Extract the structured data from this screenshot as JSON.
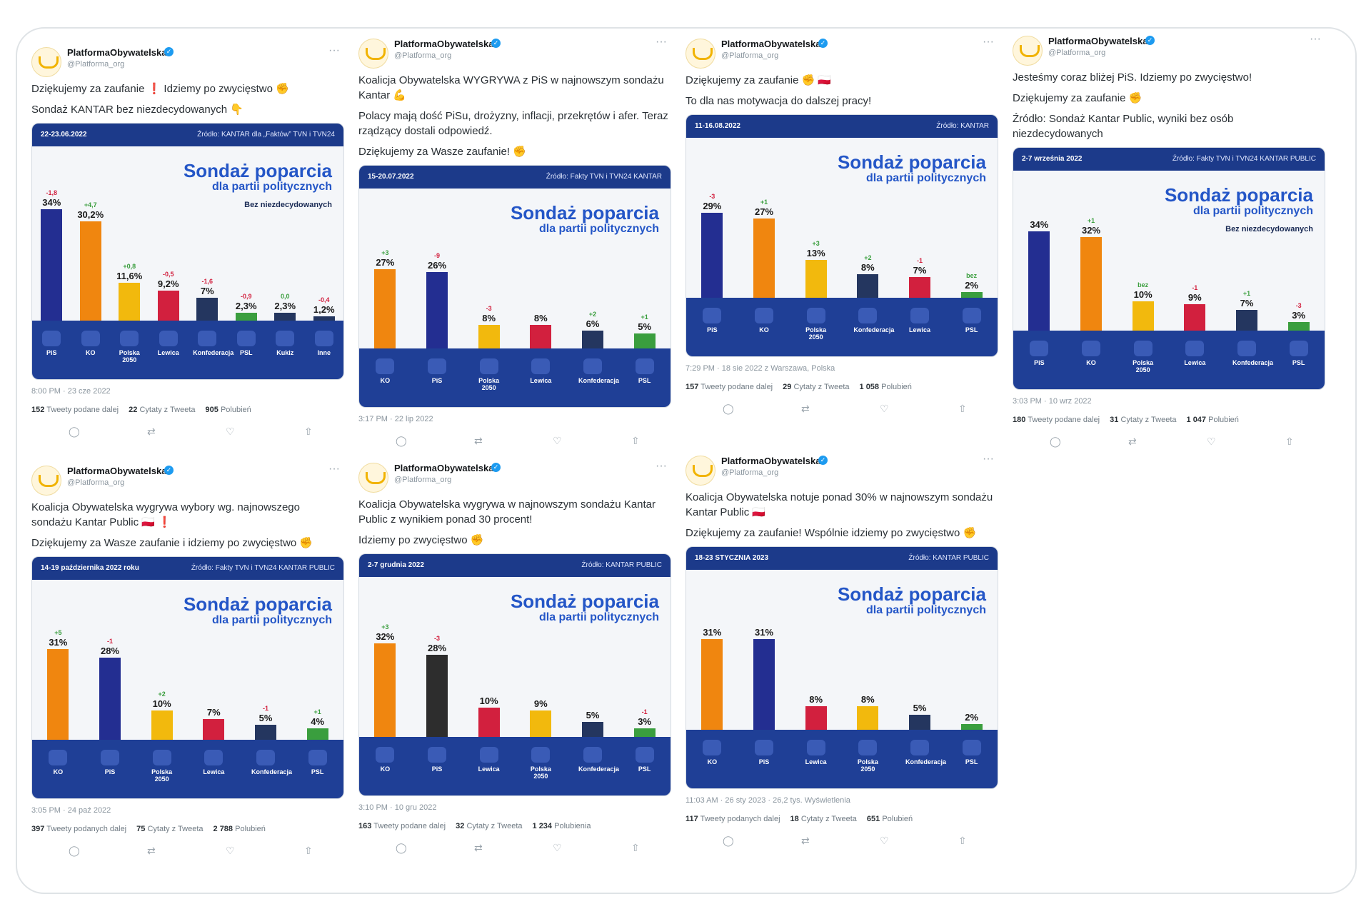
{
  "account": {
    "name": "PlatformaObywatelska",
    "handle": "@Platforma_org",
    "verified_glyph": "✓",
    "more_glyph": "···"
  },
  "chart_title": "Sondaż poparcia",
  "chart_subtitle": "dla partii politycznych",
  "colors": {
    "orange": "#f0860f",
    "navy": "#232e91",
    "yellow": "#f2b90d",
    "red": "#d2203e",
    "darkblue": "#24365f",
    "green": "#3a9e3e",
    "black": "#2d2d2d"
  },
  "tweets": [
    {
      "paragraphs": [
        "Dziękujemy za zaufanie ❗ Idziemy po zwycięstwo ✊",
        "Sondaż KANTAR bez niezdecydowanych 👇"
      ],
      "card": {
        "date": "22-23.06.2022",
        "source": "Źródło: KANTAR dla „Faktów” TVN i TVN24",
        "note": "Bez niezdecydowanych"
      },
      "meta": "8:00 PM · 23 cze 2022",
      "stats": {
        "retweets": "152",
        "retweets_label": "Tweety podane dalej",
        "quotes": "22",
        "quotes_label": "Cytaty z Tweeta",
        "likes": "905",
        "likes_label": "Polubień"
      },
      "chart_data": {
        "type": "bar",
        "ylim": [
          0,
          40
        ],
        "bars": [
          {
            "value": 34,
            "label": "34%",
            "change": "-1,8",
            "color": "navy",
            "party": "PiS"
          },
          {
            "value": 30.2,
            "label": "30,2%",
            "change": "+4,7",
            "color": "orange",
            "party": "KO"
          },
          {
            "value": 11.6,
            "label": "11,6%",
            "change": "+0,8",
            "color": "yellow",
            "party": "Polska 2050"
          },
          {
            "value": 9.2,
            "label": "9,2%",
            "change": "-0,5",
            "color": "red",
            "party": "Lewica"
          },
          {
            "value": 7,
            "label": "7%",
            "change": "-1,6",
            "color": "darkblue",
            "party": "Konfederacja"
          },
          {
            "value": 2.3,
            "label": "2,3%",
            "change": "-0,9",
            "color": "green",
            "party": "PSL"
          },
          {
            "value": 2.3,
            "label": "2,3%",
            "change": "0,0",
            "color": "darkblue",
            "party": "Kukiz"
          },
          {
            "value": 1.2,
            "label": "1,2%",
            "change": "-0,4",
            "color": "darkblue",
            "party": "Inne"
          }
        ]
      }
    },
    {
      "paragraphs": [
        "Koalicja Obywatelska WYGRYWA z PiS w najnowszym sondażu Kantar 💪",
        "Polacy mają dość PiSu, drożyzny, inflacji, przekrętów i afer. Teraz rządzący dostali odpowiedź.",
        "Dziękujemy za Wasze zaufanie! ✊"
      ],
      "card": {
        "date": "15-20.07.2022",
        "source": "Źródło: Fakty TVN i TVN24 KANTAR",
        "note": ""
      },
      "meta": "3:17 PM · 22 lip 2022",
      "stats": null,
      "chart_data": {
        "type": "bar",
        "ylim": [
          0,
          40
        ],
        "bars": [
          {
            "value": 27,
            "label": "27%",
            "change": "+3",
            "color": "orange",
            "party": "KO"
          },
          {
            "value": 26,
            "label": "26%",
            "change": "-9",
            "color": "navy",
            "party": "PiS"
          },
          {
            "value": 8,
            "label": "8%",
            "change": "-3",
            "color": "yellow",
            "party": "Polska 2050"
          },
          {
            "value": 8,
            "label": "8%",
            "change": "",
            "color": "red",
            "party": "Lewica"
          },
          {
            "value": 6,
            "label": "6%",
            "change": "+2",
            "color": "darkblue",
            "party": "Konfederacja"
          },
          {
            "value": 5,
            "label": "5%",
            "change": "+1",
            "color": "green",
            "party": "PSL"
          }
        ]
      }
    },
    {
      "paragraphs": [
        "Dziękujemy za zaufanie ✊ 🇵🇱",
        "To dla nas motywacja do dalszej pracy!"
      ],
      "card": {
        "date": "11-16.08.2022",
        "source": "Źródło: KANTAR",
        "note": ""
      },
      "meta": "7:29 PM · 18 sie 2022 z Warszawa, Polska",
      "stats": {
        "retweets": "157",
        "retweets_label": "Tweety podane dalej",
        "quotes": "29",
        "quotes_label": "Cytaty z Tweeta",
        "likes": "1 058",
        "likes_label": "Polubień"
      },
      "chart_data": {
        "type": "bar",
        "ylim": [
          0,
          40
        ],
        "bars": [
          {
            "value": 29,
            "label": "29%",
            "change": "-3",
            "color": "navy",
            "party": "PiS"
          },
          {
            "value": 27,
            "label": "27%",
            "change": "+1",
            "color": "orange",
            "party": "KO"
          },
          {
            "value": 13,
            "label": "13%",
            "change": "+3",
            "color": "yellow",
            "party": "Polska 2050"
          },
          {
            "value": 8,
            "label": "8%",
            "change": "+2",
            "color": "darkblue",
            "party": "Konfederacja"
          },
          {
            "value": 7,
            "label": "7%",
            "change": "-1",
            "color": "red",
            "party": "Lewica"
          },
          {
            "value": 2,
            "label": "2%",
            "change": "bez",
            "color": "green",
            "party": "PSL"
          }
        ]
      }
    },
    {
      "paragraphs": [
        "Jesteśmy coraz bliżej PiS. Idziemy po zwycięstwo!",
        "Dziękujemy za zaufanie ✊",
        "Źródło: Sondaż Kantar Public, wyniki bez osób niezdecydowanych"
      ],
      "card": {
        "date": "2-7 września 2022",
        "source": "Źródło: Fakty TVN i TVN24 KANTAR PUBLIC",
        "note": "Bez niezdecydowanych"
      },
      "meta": "3:03 PM · 10 wrz 2022",
      "stats": {
        "retweets": "180",
        "retweets_label": "Tweety podane dalej",
        "quotes": "31",
        "quotes_label": "Cytaty z Tweeta",
        "likes": "1 047",
        "likes_label": "Polubień"
      },
      "chart_data": {
        "type": "bar",
        "ylim": [
          0,
          40
        ],
        "bars": [
          {
            "value": 34,
            "label": "34%",
            "change": "",
            "color": "navy",
            "party": "PiS"
          },
          {
            "value": 32,
            "label": "32%",
            "change": "+1",
            "color": "orange",
            "party": "KO"
          },
          {
            "value": 10,
            "label": "10%",
            "change": "bez",
            "color": "yellow",
            "party": "Polska 2050"
          },
          {
            "value": 9,
            "label": "9%",
            "change": "-1",
            "color": "red",
            "party": "Lewica"
          },
          {
            "value": 7,
            "label": "7%",
            "change": "+1",
            "color": "darkblue",
            "party": "Konfederacja"
          },
          {
            "value": 3,
            "label": "3%",
            "change": "-3",
            "color": "green",
            "party": "PSL"
          }
        ]
      }
    },
    {
      "paragraphs": [
        "Koalicja Obywatelska wygrywa wybory wg. najnowszego sondażu Kantar Public 🇵🇱 ❗",
        "Dziękujemy za Wasze zaufanie i idziemy po zwycięstwo ✊"
      ],
      "card": {
        "date": "14-19 października 2022 roku",
        "source": "Źródło: Fakty TVN i TVN24 KANTAR PUBLIC",
        "note": ""
      },
      "meta": "3:05 PM · 24 paź 2022",
      "stats": {
        "retweets": "397",
        "retweets_label": "Tweety podanych dalej",
        "quotes": "75",
        "quotes_label": "Cytaty z Tweeta",
        "likes": "2 788",
        "likes_label": "Polubień"
      },
      "chart_data": {
        "type": "bar",
        "ylim": [
          0,
          40
        ],
        "bars": [
          {
            "value": 31,
            "label": "31%",
            "change": "+5",
            "color": "orange",
            "party": "KO"
          },
          {
            "value": 28,
            "label": "28%",
            "change": "-1",
            "color": "navy",
            "party": "PiS"
          },
          {
            "value": 10,
            "label": "10%",
            "change": "+2",
            "color": "yellow",
            "party": "Polska 2050"
          },
          {
            "value": 7,
            "label": "7%",
            "change": "",
            "color": "red",
            "party": "Lewica"
          },
          {
            "value": 5,
            "label": "5%",
            "change": "-1",
            "color": "darkblue",
            "party": "Konfederacja"
          },
          {
            "value": 4,
            "label": "4%",
            "change": "+1",
            "color": "green",
            "party": "PSL"
          }
        ]
      }
    },
    {
      "paragraphs": [
        "Koalicja Obywatelska wygrywa w najnowszym sondażu Kantar Public z wynikiem ponad 30 procent!",
        "Idziemy po zwycięstwo ✊"
      ],
      "card": {
        "date": "2-7 grudnia 2022",
        "source": "Źródło: KANTAR PUBLIC",
        "note": ""
      },
      "meta": "3:10 PM · 10 gru 2022",
      "stats": {
        "retweets": "163",
        "retweets_label": "Tweety podane dalej",
        "quotes": "32",
        "quotes_label": "Cytaty z Tweeta",
        "likes": "1 234",
        "likes_label": "Polubienia"
      },
      "chart_data": {
        "type": "bar",
        "ylim": [
          0,
          40
        ],
        "bars": [
          {
            "value": 32,
            "label": "32%",
            "change": "+3",
            "color": "orange",
            "party": "KO"
          },
          {
            "value": 28,
            "label": "28%",
            "change": "-3",
            "color": "black",
            "party": "PiS"
          },
          {
            "value": 10,
            "label": "10%",
            "change": "",
            "color": "red",
            "party": "Lewica"
          },
          {
            "value": 9,
            "label": "9%",
            "change": "",
            "color": "yellow",
            "party": "Polska 2050"
          },
          {
            "value": 5,
            "label": "5%",
            "change": "",
            "color": "darkblue",
            "party": "Konfederacja"
          },
          {
            "value": 3,
            "label": "3%",
            "change": "-1",
            "color": "green",
            "party": "PSL"
          }
        ]
      }
    },
    {
      "paragraphs": [
        "Koalicja Obywatelska notuje ponad 30% w najnowszym sondażu Kantar Public 🇵🇱",
        "Dziękujemy za zaufanie! Wspólnie idziemy po zwycięstwo ✊"
      ],
      "card": {
        "date": "18-23 STYCZNIA 2023",
        "source": "Źródło: KANTAR PUBLIC",
        "note": ""
      },
      "meta": "11:03 AM · 26 sty 2023 · 26,2 tys. Wyświetlenia",
      "stats": {
        "retweets": "117",
        "retweets_label": "Tweety podanych dalej",
        "quotes": "18",
        "quotes_label": "Cytaty z Tweeta",
        "likes": "651",
        "likes_label": "Polubień"
      },
      "chart_data": {
        "type": "bar",
        "ylim": [
          0,
          40
        ],
        "bars": [
          {
            "value": 31,
            "label": "31%",
            "change": "",
            "color": "orange",
            "party": "KO"
          },
          {
            "value": 31,
            "label": "31%",
            "change": "",
            "color": "navy",
            "party": "PiS"
          },
          {
            "value": 8,
            "label": "8%",
            "change": "",
            "color": "red",
            "party": "Lewica"
          },
          {
            "value": 8,
            "label": "8%",
            "change": "",
            "color": "yellow",
            "party": "Polska 2050"
          },
          {
            "value": 5,
            "label": "5%",
            "change": "",
            "color": "darkblue",
            "party": "Konfederacja"
          },
          {
            "value": 2,
            "label": "2%",
            "change": "",
            "color": "green",
            "party": "PSL"
          }
        ]
      }
    }
  ]
}
